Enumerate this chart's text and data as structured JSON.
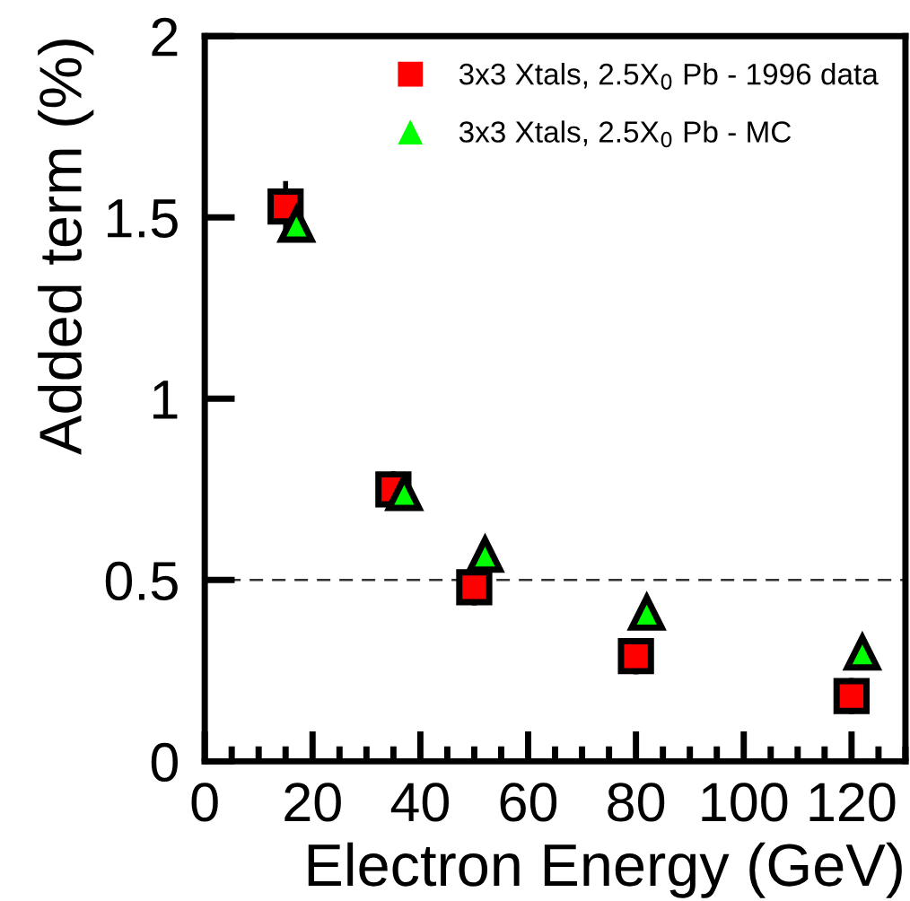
{
  "chart_data": {
    "type": "scatter",
    "xlabel": "Electron Energy (GeV)",
    "ylabel": "Added term (%)",
    "xlim": [
      0,
      130
    ],
    "xticks": [
      0,
      20,
      40,
      60,
      80,
      100,
      120
    ],
    "ylim": [
      0,
      2
    ],
    "yticks": [
      0,
      0.5,
      1,
      1.5,
      2
    ],
    "series": [
      {
        "name": "3x3 Xtals, 2.5X$_{0}$ Pb - 1996 data",
        "color": "#ff0000",
        "marker": "square",
        "x": [
          15,
          35,
          50,
          80,
          120
        ],
        "values": [
          1.53,
          0.75,
          0.48,
          0.29,
          0.18
        ],
        "errors": [
          0.07,
          0.05,
          0.05,
          0.05,
          0.05
        ]
      },
      {
        "name": "3x3 Xtals, 2.5X$_{0}$ Pb - MC",
        "color": "#00ff00",
        "marker": "triangle",
        "x": [
          17,
          37,
          52,
          82,
          122
        ],
        "values": [
          1.48,
          0.74,
          0.57,
          0.41,
          0.3
        ]
      }
    ],
    "ref_lines": [
      {
        "axis": "y",
        "value": 0.5,
        "line_style": "dashed"
      }
    ],
    "legend": "top right",
    "grid": false
  }
}
